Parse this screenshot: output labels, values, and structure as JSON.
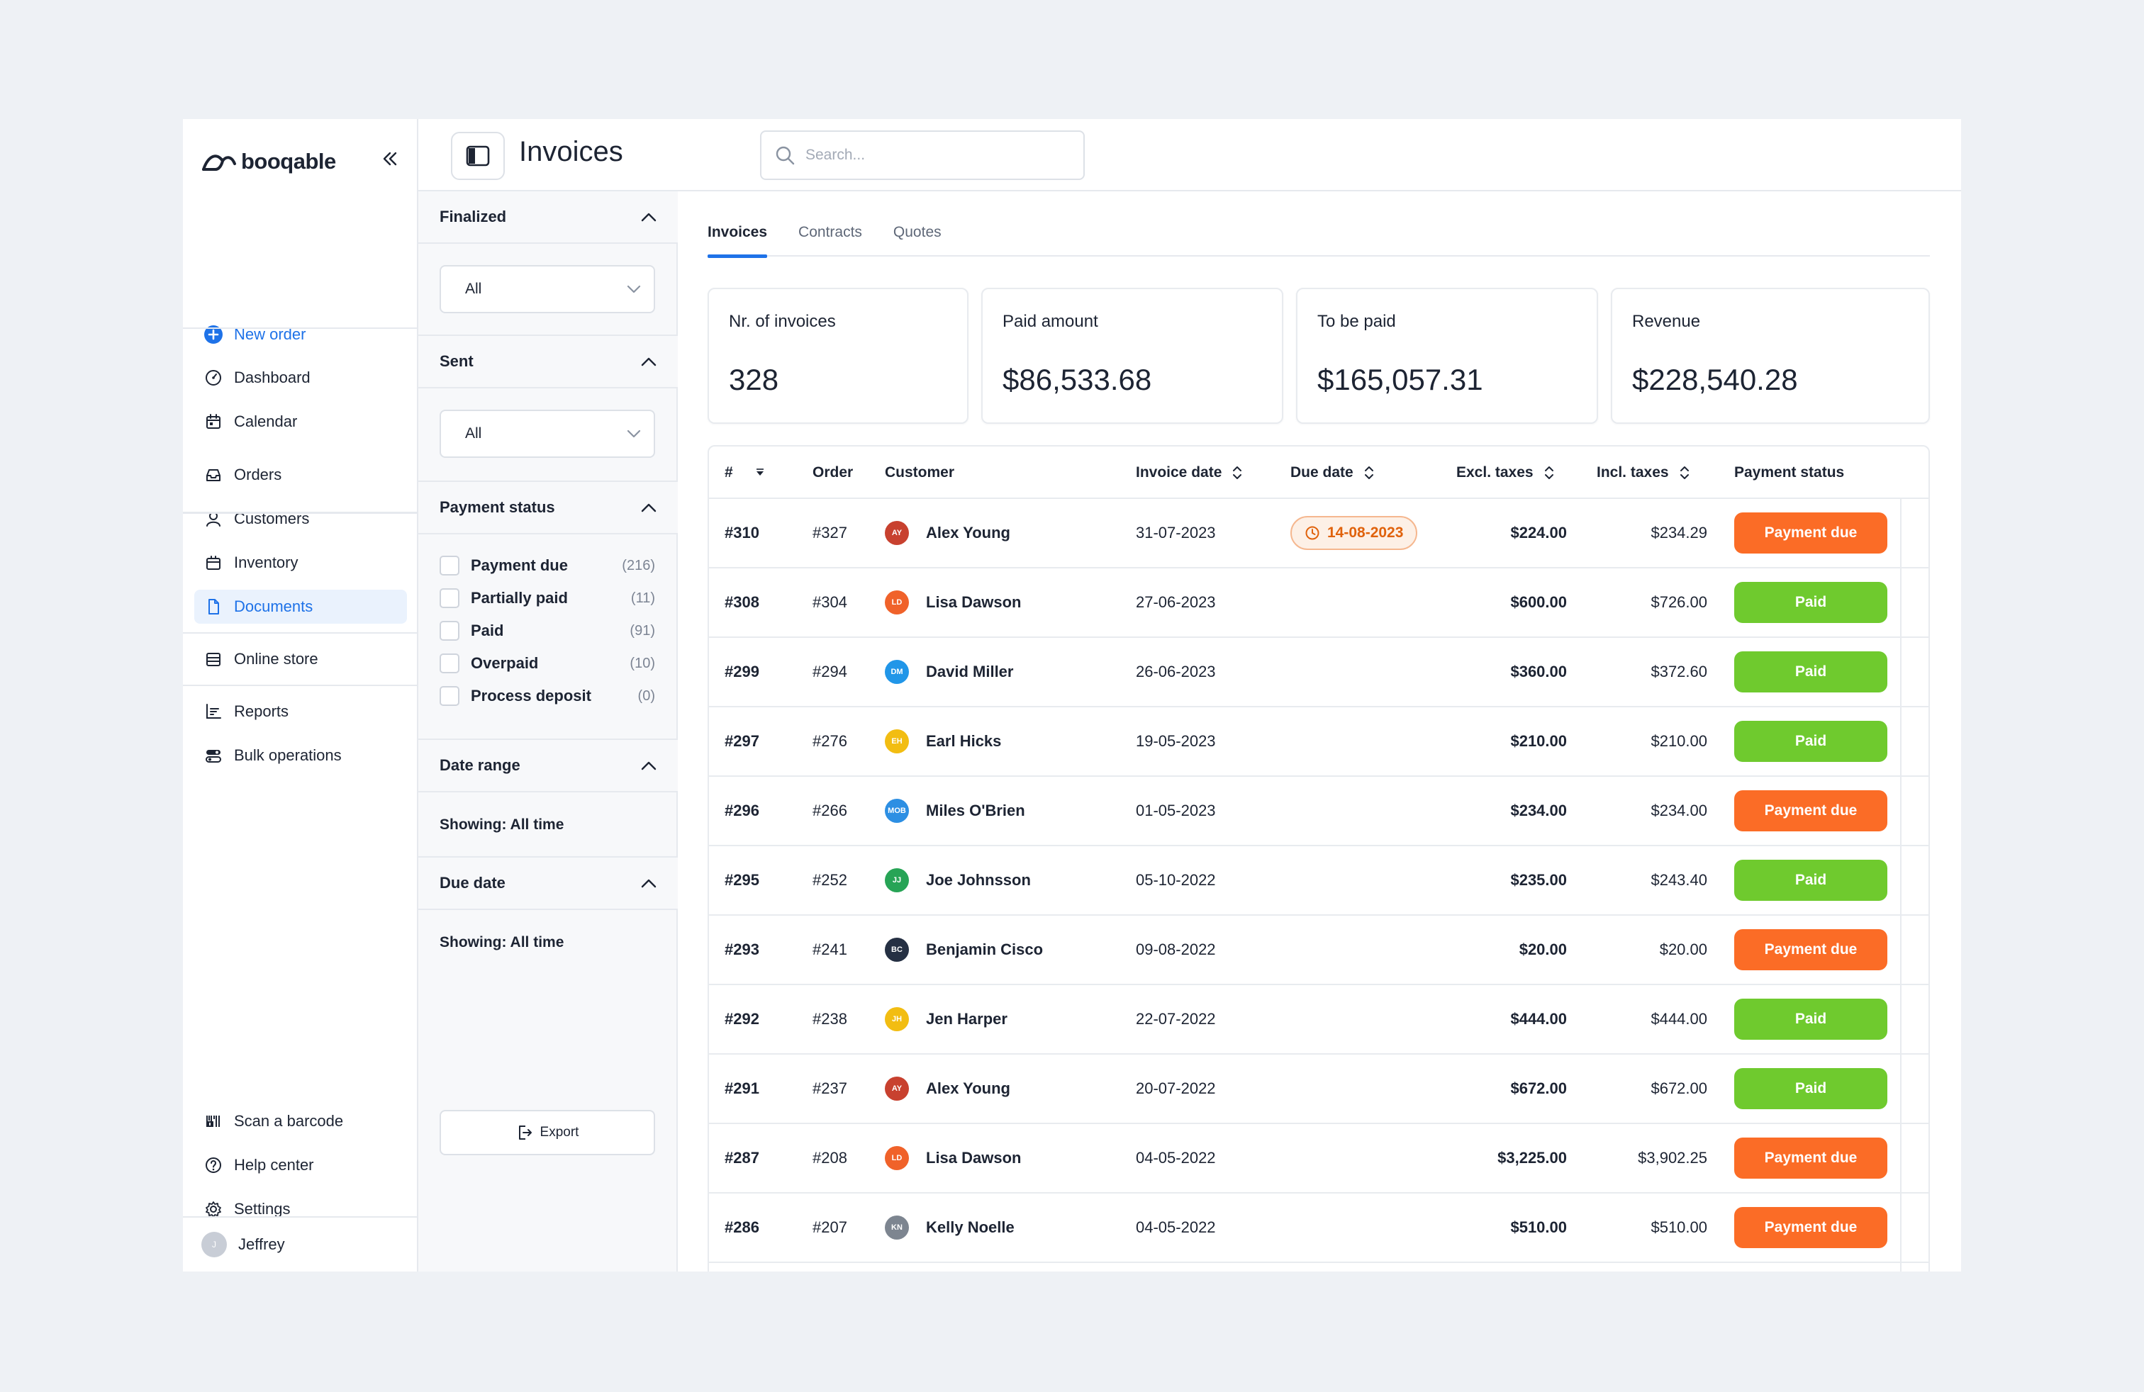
{
  "brand": {
    "name": "booqable"
  },
  "sidebar": {
    "items": [
      {
        "label": "New order",
        "icon": "plus-circle-icon"
      },
      {
        "label": "Dashboard",
        "icon": "gauge-icon"
      },
      {
        "label": "Calendar",
        "icon": "calendar-icon"
      },
      {
        "label": "Orders",
        "icon": "inbox-icon"
      },
      {
        "label": "Customers",
        "icon": "user-icon"
      },
      {
        "label": "Inventory",
        "icon": "box-icon"
      },
      {
        "label": "Documents",
        "icon": "document-icon"
      },
      {
        "label": "Online store",
        "icon": "store-icon"
      },
      {
        "label": "Reports",
        "icon": "chart-icon"
      },
      {
        "label": "Bulk operations",
        "icon": "toggles-icon"
      }
    ],
    "footer": [
      {
        "label": "Scan a barcode",
        "icon": "barcode-icon"
      },
      {
        "label": "Help center",
        "icon": "help-icon"
      },
      {
        "label": "Settings",
        "icon": "gear-icon"
      }
    ],
    "user": {
      "name": "Jeffrey",
      "initials": "J"
    }
  },
  "header": {
    "title": "Invoices",
    "search_placeholder": "Search..."
  },
  "filters": {
    "finalized": {
      "title": "Finalized",
      "value": "All"
    },
    "sent": {
      "title": "Sent",
      "value": "All"
    },
    "payment_status": {
      "title": "Payment status",
      "options": [
        {
          "label": "Payment due",
          "count": "(216)"
        },
        {
          "label": "Partially paid",
          "count": "(11)"
        },
        {
          "label": "Paid",
          "count": "(91)"
        },
        {
          "label": "Overpaid",
          "count": "(10)"
        },
        {
          "label": "Process deposit",
          "count": "(0)"
        }
      ]
    },
    "date_range": {
      "title": "Date range",
      "showing": "Showing: All time"
    },
    "due_date": {
      "title": "Due date",
      "showing": "Showing: All time"
    },
    "export_label": "Export"
  },
  "tabs": [
    "Invoices",
    "Contracts",
    "Quotes"
  ],
  "stats": [
    {
      "label": "Nr. of invoices",
      "value": "328"
    },
    {
      "label": "Paid amount",
      "value": "$86,533.68"
    },
    {
      "label": "To be paid",
      "value": "$165,057.31"
    },
    {
      "label": "Revenue",
      "value": "$228,540.28"
    }
  ],
  "table": {
    "columns": [
      "#",
      "Order",
      "Customer",
      "Invoice date",
      "Due date",
      "Excl. taxes",
      "Incl. taxes",
      "Payment status"
    ],
    "rows": [
      {
        "num": "#310",
        "order": "#327",
        "initials": "AY",
        "avatar_color": "#c8412f",
        "customer": "Alex Young",
        "invoice_date": "31-07-2023",
        "due_date": "14-08-2023",
        "excl": "$224.00",
        "incl": "$234.29",
        "status": "Payment due"
      },
      {
        "num": "#308",
        "order": "#304",
        "initials": "LD",
        "avatar_color": "#f0622a",
        "customer": "Lisa Dawson",
        "invoice_date": "27-06-2023",
        "due_date": "",
        "excl": "$600.00",
        "incl": "$726.00",
        "status": "Paid"
      },
      {
        "num": "#299",
        "order": "#294",
        "initials": "DM",
        "avatar_color": "#2196e8",
        "customer": "David Miller",
        "invoice_date": "26-06-2023",
        "due_date": "",
        "excl": "$360.00",
        "incl": "$372.60",
        "status": "Paid"
      },
      {
        "num": "#297",
        "order": "#276",
        "initials": "EH",
        "avatar_color": "#f2bd12",
        "customer": "Earl Hicks",
        "invoice_date": "19-05-2023",
        "due_date": "",
        "excl": "$210.00",
        "incl": "$210.00",
        "status": "Paid"
      },
      {
        "num": "#296",
        "order": "#266",
        "initials": "MOB",
        "avatar_color": "#2d8fe3",
        "customer": "Miles O'Brien",
        "invoice_date": "01-05-2023",
        "due_date": "",
        "excl": "$234.00",
        "incl": "$234.00",
        "status": "Payment due"
      },
      {
        "num": "#295",
        "order": "#252",
        "initials": "JJ",
        "avatar_color": "#27a456",
        "customer": "Joe Johnsson",
        "invoice_date": "05-10-2022",
        "due_date": "",
        "excl": "$235.00",
        "incl": "$243.40",
        "status": "Paid"
      },
      {
        "num": "#293",
        "order": "#241",
        "initials": "BC",
        "avatar_color": "#253043",
        "customer": "Benjamin Cisco",
        "invoice_date": "09-08-2022",
        "due_date": "",
        "excl": "$20.00",
        "incl": "$20.00",
        "status": "Payment due"
      },
      {
        "num": "#292",
        "order": "#238",
        "initials": "JH",
        "avatar_color": "#f2bd12",
        "customer": "Jen Harper",
        "invoice_date": "22-07-2022",
        "due_date": "",
        "excl": "$444.00",
        "incl": "$444.00",
        "status": "Paid"
      },
      {
        "num": "#291",
        "order": "#237",
        "initials": "AY",
        "avatar_color": "#c8412f",
        "customer": "Alex Young",
        "invoice_date": "20-07-2022",
        "due_date": "",
        "excl": "$672.00",
        "incl": "$672.00",
        "status": "Paid"
      },
      {
        "num": "#287",
        "order": "#208",
        "initials": "LD",
        "avatar_color": "#f0622a",
        "customer": "Lisa Dawson",
        "invoice_date": "04-05-2022",
        "due_date": "",
        "excl": "$3,225.00",
        "incl": "$3,902.25",
        "status": "Payment due"
      },
      {
        "num": "#286",
        "order": "#207",
        "initials": "KN",
        "avatar_color": "#7d8590",
        "customer": "Kelly Noelle",
        "invoice_date": "04-05-2022",
        "due_date": "",
        "excl": "$510.00",
        "incl": "$510.00",
        "status": "Payment due"
      }
    ]
  },
  "colors": {
    "accent": "#1e72e8",
    "paid": "#6fca2e",
    "payment_due": "#fb6c26",
    "due_badge_text": "#e0620c",
    "due_badge_bg": "#fdf0e6"
  }
}
